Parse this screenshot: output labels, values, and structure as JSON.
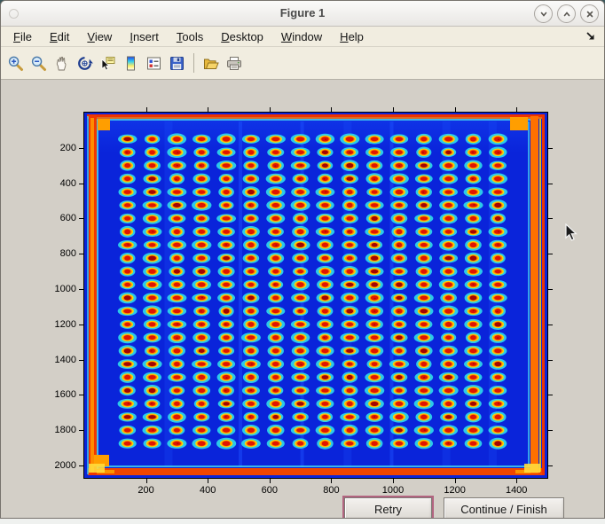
{
  "window": {
    "title": "Figure 1",
    "controls": [
      "minimize",
      "maximize",
      "close"
    ]
  },
  "menubar": {
    "items": [
      {
        "label": "File",
        "mnemonic": "F"
      },
      {
        "label": "Edit",
        "mnemonic": "E"
      },
      {
        "label": "View",
        "mnemonic": "V"
      },
      {
        "label": "Insert",
        "mnemonic": "I"
      },
      {
        "label": "Tools",
        "mnemonic": "T"
      },
      {
        "label": "Desktop",
        "mnemonic": "D"
      },
      {
        "label": "Window",
        "mnemonic": "W"
      },
      {
        "label": "Help",
        "mnemonic": "H"
      }
    ],
    "dock_icon": "dock-figure-icon"
  },
  "toolbar": {
    "tools": [
      {
        "name": "zoom-in"
      },
      {
        "name": "zoom-out"
      },
      {
        "name": "pan"
      },
      {
        "name": "rotate-3d"
      },
      {
        "name": "data-cursor"
      },
      {
        "name": "insert-colorbar"
      },
      {
        "name": "insert-legend"
      },
      {
        "name": "save-figure"
      },
      {
        "name": "separator"
      },
      {
        "name": "open-file"
      },
      {
        "name": "print-figure"
      }
    ]
  },
  "action_buttons": {
    "retry": "Retry",
    "continue": "Continue / Finish"
  },
  "chart_data": {
    "type": "heatmap",
    "title": "",
    "xlabel": "",
    "ylabel": "",
    "x_ticks": [
      200,
      400,
      600,
      800,
      1000,
      1200,
      1400
    ],
    "y_ticks": [
      200,
      400,
      600,
      800,
      1000,
      1200,
      1400,
      1600,
      1800,
      2000
    ],
    "x_range": [
      0,
      1500
    ],
    "y_range": [
      0,
      2070
    ],
    "description": "Jet-colormap intensity image of a 384-well microplate: 16 columns x 24 rows of spots with red centers, yellow-orange rings and cyan halos on a deep blue background; hot red/orange bands along all four plate edges",
    "grid": {
      "cols": 16,
      "rows": 24,
      "x0": 140,
      "y0": 150,
      "dx": 80,
      "dy": 75
    },
    "colors": {
      "background": "#0a24da",
      "band_light_blue": "rgba(30,85,255,0.45)",
      "halo": "#2fd8ec",
      "ring_yellow": "#ffd900",
      "ring_orange": "#ff7c00",
      "center": "#e01500",
      "center_dark": "#a30400",
      "edge_red": "#ee3300",
      "edge_orange": "#ff7000",
      "edge_amber": "#ff9e00",
      "edge_yellow": "#ffd000"
    }
  }
}
